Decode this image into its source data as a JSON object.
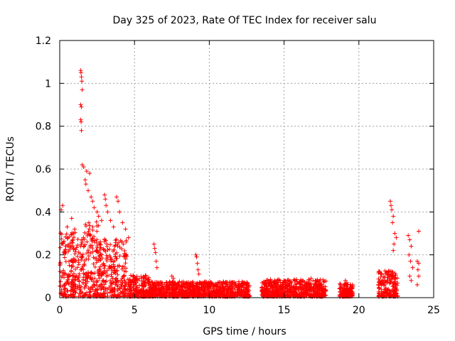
{
  "chart_data": {
    "type": "scatter",
    "title": "Day 325 of 2023, Rate Of TEC Index for receiver salu",
    "xlabel": "GPS time / hours",
    "ylabel": "ROTI / TECUs",
    "xlim": [
      0,
      25
    ],
    "ylim": [
      0,
      1.2
    ],
    "x_ticks": [
      0,
      5,
      10,
      15,
      20,
      25
    ],
    "x_tick_labels": [
      "0",
      "5",
      "10",
      "15",
      "20",
      "25"
    ],
    "y_ticks": [
      0,
      0.2,
      0.4,
      0.6,
      0.8,
      1.0,
      1.2
    ],
    "y_tick_labels": [
      "0",
      "0.2",
      "0.4",
      "0.6",
      "0.8",
      "1",
      "1.2"
    ],
    "grid": true,
    "marker": "+",
    "marker_color": "#ff0000",
    "series": [
      {
        "name": "ROTI",
        "points": [
          [
            0.1,
            0.41
          ],
          [
            0.2,
            0.43
          ],
          [
            0.5,
            0.33
          ],
          [
            0.8,
            0.37
          ],
          [
            1.0,
            0.32
          ],
          [
            1.4,
            1.06
          ],
          [
            1.42,
            1.05
          ],
          [
            1.45,
            1.03
          ],
          [
            1.48,
            1.01
          ],
          [
            1.5,
            0.97
          ],
          [
            1.4,
            0.9
          ],
          [
            1.45,
            0.89
          ],
          [
            1.4,
            0.83
          ],
          [
            1.43,
            0.82
          ],
          [
            1.45,
            0.78
          ],
          [
            1.5,
            0.62
          ],
          [
            1.6,
            0.61
          ],
          [
            1.7,
            0.55
          ],
          [
            1.75,
            0.53
          ],
          [
            1.8,
            0.59
          ],
          [
            2.0,
            0.58
          ],
          [
            1.9,
            0.5
          ],
          [
            2.1,
            0.47
          ],
          [
            2.2,
            0.45
          ],
          [
            2.3,
            0.42
          ],
          [
            2.5,
            0.4
          ],
          [
            2.6,
            0.38
          ],
          [
            2.8,
            0.36
          ],
          [
            3.0,
            0.48
          ],
          [
            3.05,
            0.46
          ],
          [
            3.1,
            0.43
          ],
          [
            3.2,
            0.4
          ],
          [
            3.4,
            0.36
          ],
          [
            3.6,
            0.33
          ],
          [
            3.8,
            0.47
          ],
          [
            3.9,
            0.45
          ],
          [
            4.0,
            0.4
          ],
          [
            4.2,
            0.35
          ],
          [
            4.4,
            0.32
          ],
          [
            4.6,
            0.28
          ],
          [
            6.3,
            0.25
          ],
          [
            6.35,
            0.23
          ],
          [
            6.4,
            0.21
          ],
          [
            6.45,
            0.17
          ],
          [
            6.5,
            0.14
          ],
          [
            7.5,
            0.1
          ],
          [
            7.6,
            0.09
          ],
          [
            9.1,
            0.2
          ],
          [
            9.15,
            0.19
          ],
          [
            9.2,
            0.16
          ],
          [
            9.25,
            0.13
          ],
          [
            9.3,
            0.11
          ],
          [
            15.0,
            0.08
          ],
          [
            15.1,
            0.07
          ],
          [
            16.8,
            0.09
          ],
          [
            19.1,
            0.08
          ],
          [
            19.2,
            0.07
          ],
          [
            22.1,
            0.45
          ],
          [
            22.15,
            0.43
          ],
          [
            22.2,
            0.41
          ],
          [
            22.3,
            0.38
          ],
          [
            22.25,
            0.35
          ],
          [
            22.4,
            0.3
          ],
          [
            22.5,
            0.28
          ],
          [
            22.35,
            0.25
          ],
          [
            22.3,
            0.22
          ],
          [
            23.3,
            0.29
          ],
          [
            23.4,
            0.27
          ],
          [
            23.5,
            0.24
          ],
          [
            23.35,
            0.2
          ],
          [
            23.45,
            0.17
          ],
          [
            23.6,
            0.14
          ],
          [
            23.4,
            0.1
          ],
          [
            23.5,
            0.08
          ],
          [
            24.0,
            0.31
          ],
          [
            23.9,
            0.17
          ],
          [
            24.0,
            0.16
          ],
          [
            23.95,
            0.13
          ],
          [
            24.0,
            0.1
          ],
          [
            23.9,
            0.06
          ]
        ],
        "dense_bands": [
          {
            "x_start": 0.0,
            "x_end": 1.3,
            "y_max": 0.3
          },
          {
            "x_start": 1.3,
            "x_end": 2.6,
            "y_max": 0.35
          },
          {
            "x_start": 2.6,
            "x_end": 4.5,
            "y_max": 0.28
          },
          {
            "x_start": 4.5,
            "x_end": 6.0,
            "y_max": 0.1
          },
          {
            "x_start": 6.0,
            "x_end": 9.0,
            "y_max": 0.07
          },
          {
            "x_start": 9.0,
            "x_end": 12.7,
            "y_max": 0.07
          },
          {
            "x_start": 13.5,
            "x_end": 17.8,
            "y_max": 0.08
          },
          {
            "x_start": 18.7,
            "x_end": 19.6,
            "y_max": 0.06
          },
          {
            "x_start": 21.3,
            "x_end": 22.6,
            "y_max": 0.12
          }
        ]
      }
    ]
  }
}
